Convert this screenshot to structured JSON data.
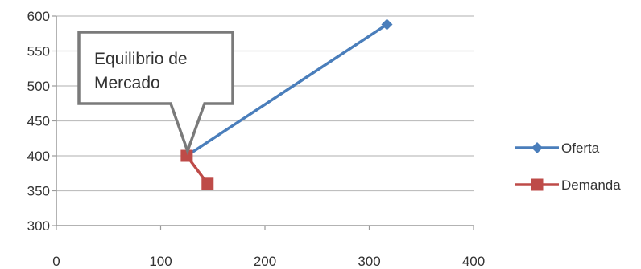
{
  "chart_data": {
    "type": "line",
    "title": "",
    "xlabel": "",
    "ylabel": "",
    "xlim": [
      0,
      400
    ],
    "ylim": [
      300,
      600
    ],
    "x_ticks": [
      0,
      100,
      200,
      300,
      400
    ],
    "y_ticks": [
      300,
      350,
      400,
      450,
      500,
      550,
      600
    ],
    "grid": "horizontal",
    "legend_position": "right",
    "series": [
      {
        "name": "Oferta",
        "color": "#4a7ebb",
        "marker": "diamond",
        "points": [
          [
            125,
            400
          ],
          [
            317,
            588
          ]
        ]
      },
      {
        "name": "Demanda",
        "color": "#be4b48",
        "marker": "square",
        "points": [
          [
            125,
            400
          ],
          [
            145,
            360
          ]
        ]
      }
    ],
    "annotations": [
      {
        "text_lines": [
          "Equilibrio de",
          "Mercado"
        ],
        "target": [
          125,
          400
        ]
      }
    ]
  }
}
